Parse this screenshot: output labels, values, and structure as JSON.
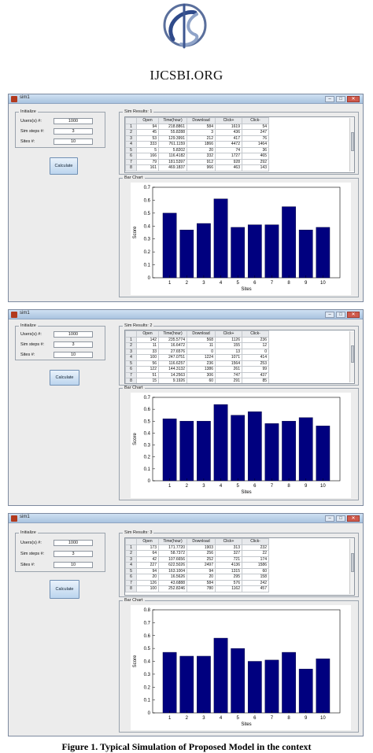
{
  "brand": {
    "name": "IJCSBI.ORG"
  },
  "caption": "Figure 1. Typical Simulation of Proposed Model in the context",
  "windows": [
    {
      "title": "sim1",
      "init_label": "Initialize",
      "users_label": "Users(s) #:",
      "users_value": "1000",
      "steps_label": "Sim steps #:",
      "steps_value": "3",
      "sites_label": "Sites    #:",
      "sites_value": "10",
      "calc_label": "Calculate",
      "results_label": "Sim Results: 1",
      "chart_label": "Bar Chart",
      "columns": [
        "Open",
        "Time(hour)",
        "Download",
        "Click+",
        "Click-"
      ],
      "rows": [
        [
          "1",
          "94",
          "218.8861",
          "584",
          "1619",
          "54"
        ],
        [
          "2",
          "45",
          "55.8288",
          "3",
          "436",
          "247"
        ],
        [
          "3",
          "53",
          "129.3991",
          "212",
          "417",
          "76"
        ],
        [
          "4",
          "333",
          "761.1159",
          "1866",
          "4472",
          "1464"
        ],
        [
          "5",
          "5",
          "5.8202",
          "20",
          "74",
          "36"
        ],
        [
          "6",
          "166",
          "116.4182",
          "332",
          "1727",
          "465"
        ],
        [
          "7",
          "79",
          "181.5397",
          "912",
          "928",
          "292"
        ],
        [
          "8",
          "161",
          "469.1837",
          "966",
          "463",
          "143"
        ]
      ]
    },
    {
      "title": "sim1",
      "init_label": "Initialize",
      "users_label": "Users(s) #:",
      "users_value": "1000",
      "steps_label": "Sim steps #:",
      "steps_value": "3",
      "sites_label": "Sites    #:",
      "sites_value": "10",
      "calc_label": "Calculate",
      "results_label": "Sim Results: 2",
      "chart_label": "Bar Chart",
      "columns": [
        "Open",
        "Time(hour)",
        "Download",
        "Click+",
        "Click-"
      ],
      "rows": [
        [
          "1",
          "142",
          "235.5774",
          "568",
          "1126",
          "236"
        ],
        [
          "2",
          "11",
          "16.6472",
          "11",
          "155",
          "12"
        ],
        [
          "3",
          "33",
          "27.6576",
          "0",
          "13",
          "0"
        ],
        [
          "4",
          "100",
          "247.0751",
          "1224",
          "1071",
          "414"
        ],
        [
          "5",
          "56",
          "116.6257",
          "236",
          "1564",
          "253"
        ],
        [
          "6",
          "122",
          "144.3132",
          "1386",
          "261",
          "99"
        ],
        [
          "7",
          "51",
          "14.2563",
          "306",
          "747",
          "437"
        ],
        [
          "8",
          "15",
          "9.1926",
          "60",
          "291",
          "85"
        ]
      ]
    },
    {
      "title": "sim1",
      "init_label": "Initialize",
      "users_label": "Users(s) #:",
      "users_value": "1000",
      "steps_label": "Sim steps #:",
      "steps_value": "3",
      "sites_label": "Sites    #:",
      "sites_value": "10",
      "calc_label": "Calculate",
      "results_label": "Sim Results: 3",
      "chart_label": "Bar Chart",
      "columns": [
        "Open",
        "Time(hour)",
        "Download",
        "Click+",
        "Click-"
      ],
      "rows": [
        [
          "1",
          "173",
          "171.7720",
          "1903",
          "313",
          "232"
        ],
        [
          "2",
          "64",
          "58.7372",
          "256",
          "327",
          "22"
        ],
        [
          "3",
          "42",
          "107.6656",
          "252",
          "721",
          "174"
        ],
        [
          "4",
          "227",
          "622.5026",
          "2497",
          "4136",
          "1586"
        ],
        [
          "5",
          "94",
          "163.1004",
          "94",
          "1315",
          "60"
        ],
        [
          "6",
          "20",
          "16.5626",
          "20",
          "295",
          "158"
        ],
        [
          "7",
          "126",
          "43.6888",
          "584",
          "576",
          "242"
        ],
        [
          "8",
          "100",
          "252.8246",
          "780",
          "1162",
          "457"
        ]
      ]
    }
  ],
  "chart_data": [
    {
      "type": "bar",
      "title": "",
      "xlabel": "Sites",
      "ylabel": "Score",
      "categories": [
        "1",
        "2",
        "3",
        "4",
        "5",
        "6",
        "7",
        "8",
        "9",
        "10"
      ],
      "values": [
        0.5,
        0.37,
        0.42,
        0.61,
        0.39,
        0.41,
        0.41,
        0.55,
        0.37,
        0.39
      ],
      "ylim": [
        0,
        0.7
      ],
      "yticks": [
        "0",
        "0.1",
        "0.2",
        "0.3",
        "0.4",
        "0.5",
        "0.6",
        "0.7"
      ],
      "grid": false
    },
    {
      "type": "bar",
      "title": "",
      "xlabel": "Sites",
      "ylabel": "Score",
      "categories": [
        "1",
        "2",
        "3",
        "4",
        "5",
        "6",
        "7",
        "8",
        "9",
        "10"
      ],
      "values": [
        0.52,
        0.5,
        0.5,
        0.64,
        0.55,
        0.58,
        0.48,
        0.5,
        0.53,
        0.46
      ],
      "ylim": [
        0,
        0.7
      ],
      "yticks": [
        "0",
        "0.1",
        "0.2",
        "0.3",
        "0.4",
        "0.5",
        "0.6",
        "0.7"
      ],
      "grid": false
    },
    {
      "type": "bar",
      "title": "",
      "xlabel": "Sites",
      "ylabel": "Score",
      "categories": [
        "1",
        "2",
        "3",
        "4",
        "5",
        "6",
        "7",
        "8",
        "9",
        "10"
      ],
      "values": [
        0.47,
        0.44,
        0.44,
        0.58,
        0.5,
        0.4,
        0.41,
        0.47,
        0.34,
        0.42
      ],
      "ylim": [
        0,
        0.8
      ],
      "yticks": [
        "0",
        "0.1",
        "0.2",
        "0.3",
        "0.4",
        "0.5",
        "0.6",
        "0.7",
        "0.8"
      ],
      "grid": false
    }
  ]
}
